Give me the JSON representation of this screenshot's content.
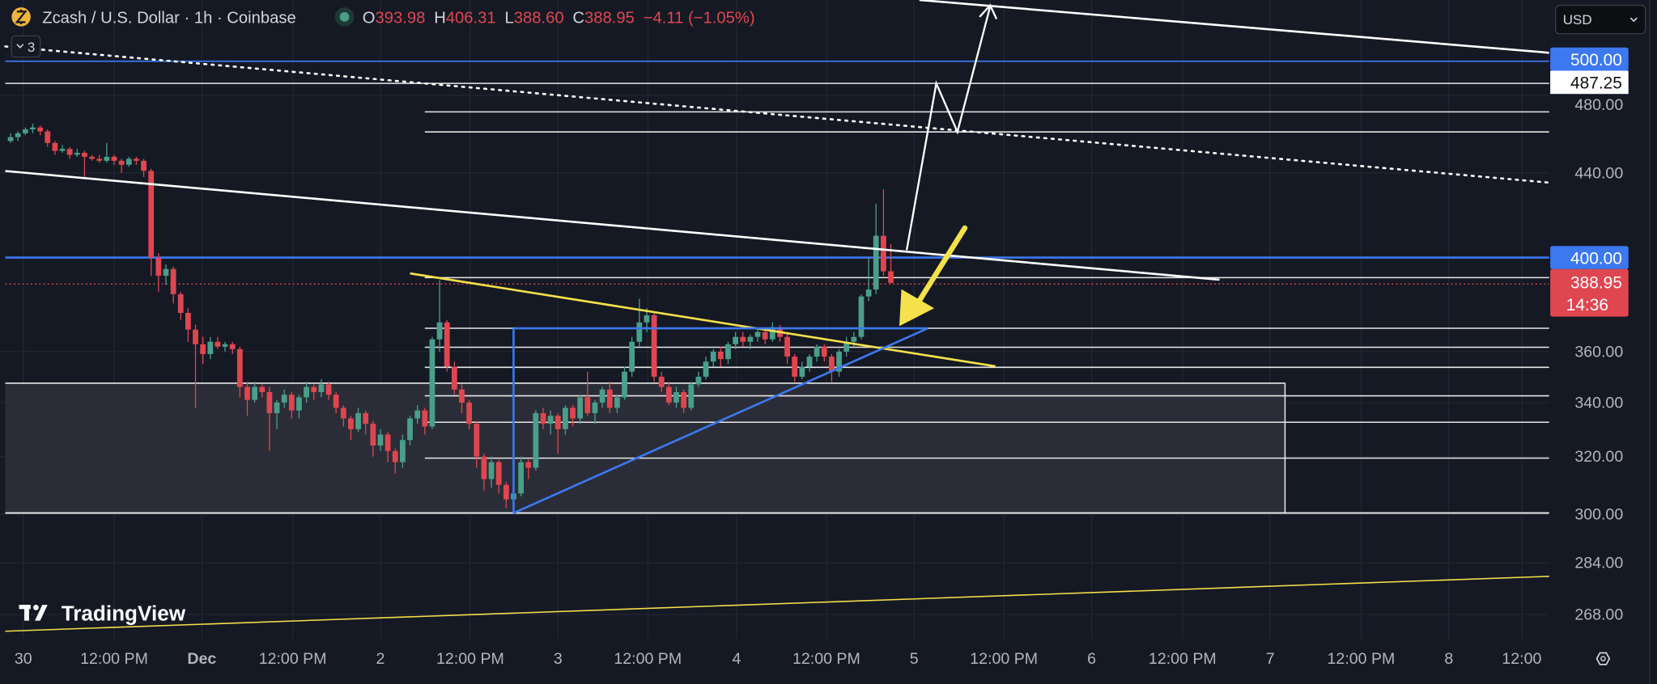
{
  "header": {
    "symbol": "Zcash / U.S. Dollar · 1h · Coinbase",
    "open_label": "O",
    "open": "393.98",
    "high_label": "H",
    "high": "406.31",
    "low_label": "L",
    "low": "388.60",
    "close_label": "C",
    "close": "388.95",
    "change": "−4.11 (−1.05%)",
    "indicators_count": "3"
  },
  "currency_select": "USD",
  "branding": "TradingView",
  "colors": {
    "background": "#151924",
    "up": "#4a9e8a",
    "down": "#e0464f",
    "blue_level": "#3c78f0",
    "yellow_line": "#f5e14a",
    "price_red": "#e0464f"
  },
  "price_badges": {
    "level_500": "500.00",
    "level_487": "487.25",
    "level_400": "400.00",
    "last_price": "388.95",
    "countdown": "14:36"
  },
  "chart_data": {
    "type": "candlestick",
    "interval": "1h",
    "y_scale": "log",
    "ylim": [
      262,
      520
    ],
    "grid": true,
    "y_ticks": [
      "480.00",
      "440.00",
      "360.00",
      "340.00",
      "320.00",
      "300.00",
      "284.00",
      "268.00"
    ],
    "y_tick_values": [
      480,
      440,
      360,
      340,
      320,
      300,
      284,
      268
    ],
    "x_ticks": [
      "30",
      "12:00 PM",
      "Dec",
      "12:00 PM",
      "2",
      "12:00 PM",
      "3",
      "12:00 PM",
      "4",
      "12:00 PM",
      "5",
      "12:00 PM",
      "6",
      "12:00 PM",
      "7",
      "12:00 PM",
      "8",
      "12:00"
    ],
    "candles_ohlc": [
      [
        456,
        460,
        455,
        458
      ],
      [
        458,
        461,
        456,
        460
      ],
      [
        460,
        463,
        459,
        462
      ],
      [
        462,
        465,
        460,
        463
      ],
      [
        463,
        464,
        459,
        461
      ],
      [
        461,
        462,
        453,
        455
      ],
      [
        455,
        456,
        449,
        451
      ],
      [
        451,
        454,
        450,
        452
      ],
      [
        452,
        453,
        447,
        449
      ],
      [
        449,
        452,
        448,
        450
      ],
      [
        450,
        451,
        438,
        448
      ],
      [
        448,
        449,
        446,
        447
      ],
      [
        447,
        449,
        445,
        446
      ],
      [
        446,
        455,
        445,
        448
      ],
      [
        448,
        449,
        444,
        446
      ],
      [
        446,
        447,
        440,
        444
      ],
      [
        444,
        448,
        443,
        447
      ],
      [
        447,
        448,
        444,
        446
      ],
      [
        446,
        447,
        438,
        441
      ],
      [
        441,
        442,
        392,
        400
      ],
      [
        400,
        402,
        385,
        392
      ],
      [
        392,
        397,
        388,
        395
      ],
      [
        395,
        396,
        380,
        384
      ],
      [
        384,
        385,
        373,
        376
      ],
      [
        376,
        378,
        364,
        369
      ],
      [
        369,
        371,
        338,
        363
      ],
      [
        363,
        366,
        355,
        359
      ],
      [
        359,
        366,
        357,
        364
      ],
      [
        364,
        366,
        361,
        362
      ],
      [
        362,
        364,
        360,
        363
      ],
      [
        363,
        364,
        359,
        361
      ],
      [
        361,
        362,
        342,
        346
      ],
      [
        346,
        348,
        335,
        341
      ],
      [
        341,
        348,
        340,
        346
      ],
      [
        346,
        347,
        342,
        344
      ],
      [
        344,
        346,
        322,
        336
      ],
      [
        336,
        341,
        330,
        340
      ],
      [
        340,
        345,
        338,
        343
      ],
      [
        343,
        344,
        334,
        337
      ],
      [
        337,
        343,
        334,
        342
      ],
      [
        342,
        348,
        340,
        346
      ],
      [
        346,
        347,
        341,
        344
      ],
      [
        344,
        349,
        342,
        347
      ],
      [
        347,
        348,
        341,
        343
      ],
      [
        343,
        344,
        336,
        338
      ],
      [
        338,
        339,
        331,
        334
      ],
      [
        334,
        335,
        326,
        330
      ],
      [
        330,
        338,
        329,
        336
      ],
      [
        336,
        337,
        328,
        332
      ],
      [
        332,
        333,
        320,
        324
      ],
      [
        324,
        330,
        322,
        328
      ],
      [
        328,
        329,
        318,
        322
      ],
      [
        322,
        323,
        314,
        318
      ],
      [
        318,
        328,
        316,
        326
      ],
      [
        326,
        335,
        324,
        334
      ],
      [
        334,
        339,
        332,
        337
      ],
      [
        337,
        338,
        328,
        331
      ],
      [
        331,
        366,
        330,
        365
      ],
      [
        365,
        390,
        360,
        372
      ],
      [
        372,
        373,
        352,
        354
      ],
      [
        354,
        356,
        343,
        345
      ],
      [
        345,
        347,
        336,
        340
      ],
      [
        340,
        341,
        330,
        332
      ],
      [
        332,
        333,
        316,
        320
      ],
      [
        320,
        321,
        308,
        312
      ],
      [
        312,
        320,
        309,
        318
      ],
      [
        318,
        319,
        307,
        310
      ],
      [
        310,
        311,
        302,
        305
      ],
      [
        305,
        309,
        301,
        307
      ],
      [
        307,
        320,
        306,
        318
      ],
      [
        318,
        319,
        312,
        316
      ],
      [
        316,
        337,
        315,
        336
      ],
      [
        336,
        338,
        330,
        332
      ],
      [
        332,
        337,
        328,
        335
      ],
      [
        335,
        336,
        321,
        330
      ],
      [
        330,
        339,
        328,
        338
      ],
      [
        338,
        339,
        331,
        334
      ],
      [
        334,
        343,
        332,
        342
      ],
      [
        342,
        352,
        335,
        336
      ],
      [
        336,
        341,
        332,
        340
      ],
      [
        340,
        346,
        338,
        345
      ],
      [
        345,
        348,
        336,
        338
      ],
      [
        338,
        343,
        336,
        342
      ],
      [
        342,
        354,
        341,
        352
      ],
      [
        352,
        366,
        350,
        364
      ],
      [
        364,
        382,
        362,
        372
      ],
      [
        372,
        378,
        368,
        375
      ],
      [
        375,
        376,
        348,
        350
      ],
      [
        350,
        352,
        344,
        346
      ],
      [
        346,
        348,
        339,
        340
      ],
      [
        340,
        346,
        338,
        344
      ],
      [
        344,
        345,
        336,
        338
      ],
      [
        338,
        348,
        337,
        347
      ],
      [
        347,
        352,
        346,
        350
      ],
      [
        350,
        358,
        349,
        356
      ],
      [
        356,
        361,
        354,
        360
      ],
      [
        360,
        362,
        354,
        357
      ],
      [
        357,
        364,
        355,
        363
      ],
      [
        363,
        368,
        361,
        366
      ],
      [
        366,
        368,
        362,
        364
      ],
      [
        364,
        367,
        361,
        366
      ],
      [
        366,
        369,
        364,
        368
      ],
      [
        368,
        369,
        363,
        365
      ],
      [
        365,
        372,
        364,
        370
      ],
      [
        370,
        371,
        364,
        366
      ],
      [
        366,
        367,
        355,
        358
      ],
      [
        358,
        359,
        348,
        350
      ],
      [
        350,
        356,
        349,
        354
      ],
      [
        354,
        359,
        352,
        358
      ],
      [
        358,
        363,
        356,
        362
      ],
      [
        362,
        363,
        356,
        358
      ],
      [
        358,
        359,
        348,
        352
      ],
      [
        352,
        361,
        350,
        360
      ],
      [
        360,
        366,
        358,
        364
      ],
      [
        364,
        368,
        362,
        366
      ],
      [
        366,
        384,
        365,
        383
      ],
      [
        383,
        400,
        381,
        386
      ],
      [
        386,
        425,
        384,
        410
      ],
      [
        410,
        432,
        392,
        394
      ],
      [
        393.98,
        406.31,
        388.6,
        388.95
      ]
    ]
  }
}
